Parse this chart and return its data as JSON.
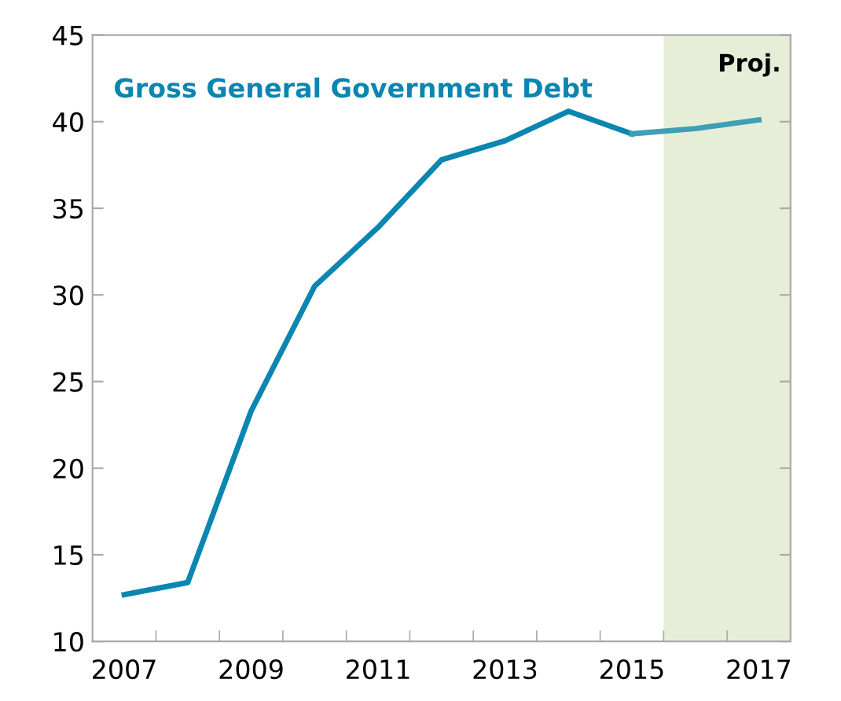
{
  "chart_data": {
    "type": "line",
    "title": "Gross General Government Debt",
    "x": [
      2007,
      2008,
      2009,
      2010,
      2011,
      2012,
      2013,
      2014,
      2015,
      2016,
      2017
    ],
    "series": [
      {
        "color": "#0a86b0",
        "values": [
          12.7,
          13.4,
          23.3,
          30.5,
          33.9,
          37.8,
          38.9,
          40.6,
          39.3,
          null,
          null
        ]
      },
      {
        "color": "#3f9fb6",
        "values": [
          null,
          null,
          null,
          null,
          null,
          null,
          null,
          null,
          39.3,
          39.6,
          40.1
        ]
      }
    ],
    "bands": [
      {
        "axis": "x",
        "from": 2015.5,
        "to": 2017.5,
        "label": "Proj.",
        "color": "#e6eed8"
      }
    ],
    "xlim": [
      2006.5,
      2017.5
    ],
    "xticks": [
      2007,
      2009,
      2011,
      2013,
      2015,
      2017,
      {
        "value": 2007.5,
        "label": null
      },
      {
        "value": 2008.5,
        "label": null
      },
      {
        "value": 2009.5,
        "label": null
      },
      {
        "value": 2010.5,
        "label": null
      },
      {
        "value": 2011.5,
        "label": null
      },
      {
        "value": 2012.5,
        "label": null
      },
      {
        "value": 2013.5,
        "label": null
      },
      {
        "value": 2014.5,
        "label": null
      },
      {
        "value": 2015.5,
        "label": null
      },
      {
        "value": 2016.5,
        "label": null
      }
    ],
    "ylim": [
      10,
      45
    ],
    "yticks": [
      10,
      15,
      20,
      25,
      30,
      35,
      40,
      45
    ],
    "grid": false,
    "marker": "none",
    "line_style": "solid"
  }
}
